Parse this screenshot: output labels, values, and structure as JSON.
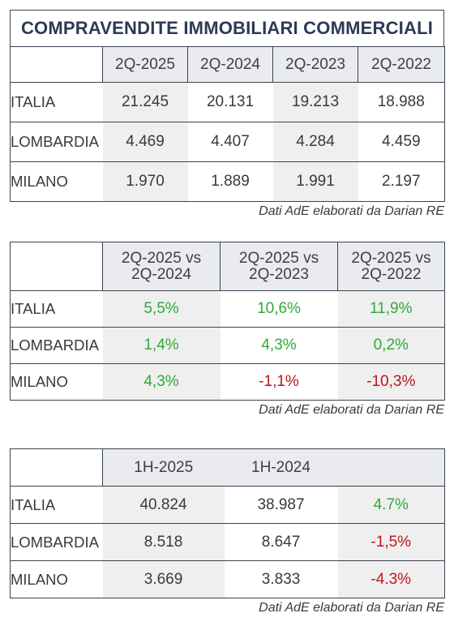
{
  "table1": {
    "title": "COMPRAVENDITE IMMOBILIARI COMMERCIALI",
    "columns": [
      "2Q-2025",
      "2Q-2024",
      "2Q-2023",
      "2Q-2022"
    ],
    "rows": [
      {
        "label": "ITALIA",
        "values": [
          "21.245",
          "20.131",
          "19.213",
          "18.988"
        ]
      },
      {
        "label": "LOMBARDIA",
        "values": [
          "4.469",
          "4.407",
          "4.284",
          "4.459"
        ]
      },
      {
        "label": "MILANO",
        "values": [
          "1.970",
          "1.889",
          "1.991",
          "2.197"
        ]
      }
    ],
    "source": "Dati AdE elaborati da Darian RE"
  },
  "table2": {
    "columns": [
      {
        "line1": "2Q-2025 vs",
        "line2": "2Q-2024"
      },
      {
        "line1": "2Q-2025 vs",
        "line2": "2Q-2023"
      },
      {
        "line1": "2Q-2025 vs",
        "line2": "2Q-2022"
      }
    ],
    "rows": [
      {
        "label": "ITALIA",
        "values": [
          "5,5%",
          "10,6%",
          "11,9%"
        ]
      },
      {
        "label": "LOMBARDIA",
        "values": [
          "1,4%",
          "4,3%",
          "0,2%"
        ]
      },
      {
        "label": "MILANO",
        "values": [
          "4,3%",
          "-1,1%",
          "-10,3%"
        ]
      }
    ],
    "source": "Dati AdE elaborati da Darian RE",
    "colors": {
      "positive": "#2eaa3a",
      "negative": "#c0141d"
    }
  },
  "table3": {
    "columns": [
      "1H-2025",
      "1H-2024",
      ""
    ],
    "rows": [
      {
        "label": "ITALIA",
        "values": [
          "40.824",
          "38.987",
          "4.7%"
        ]
      },
      {
        "label": "LOMBARDIA",
        "values": [
          "8.518",
          "8.647",
          "-1,5%"
        ]
      },
      {
        "label": "MILANO",
        "values": [
          "3.669",
          "3.833",
          "-4.3%"
        ]
      }
    ],
    "source": "Dati AdE elaborati da Darian RE"
  }
}
